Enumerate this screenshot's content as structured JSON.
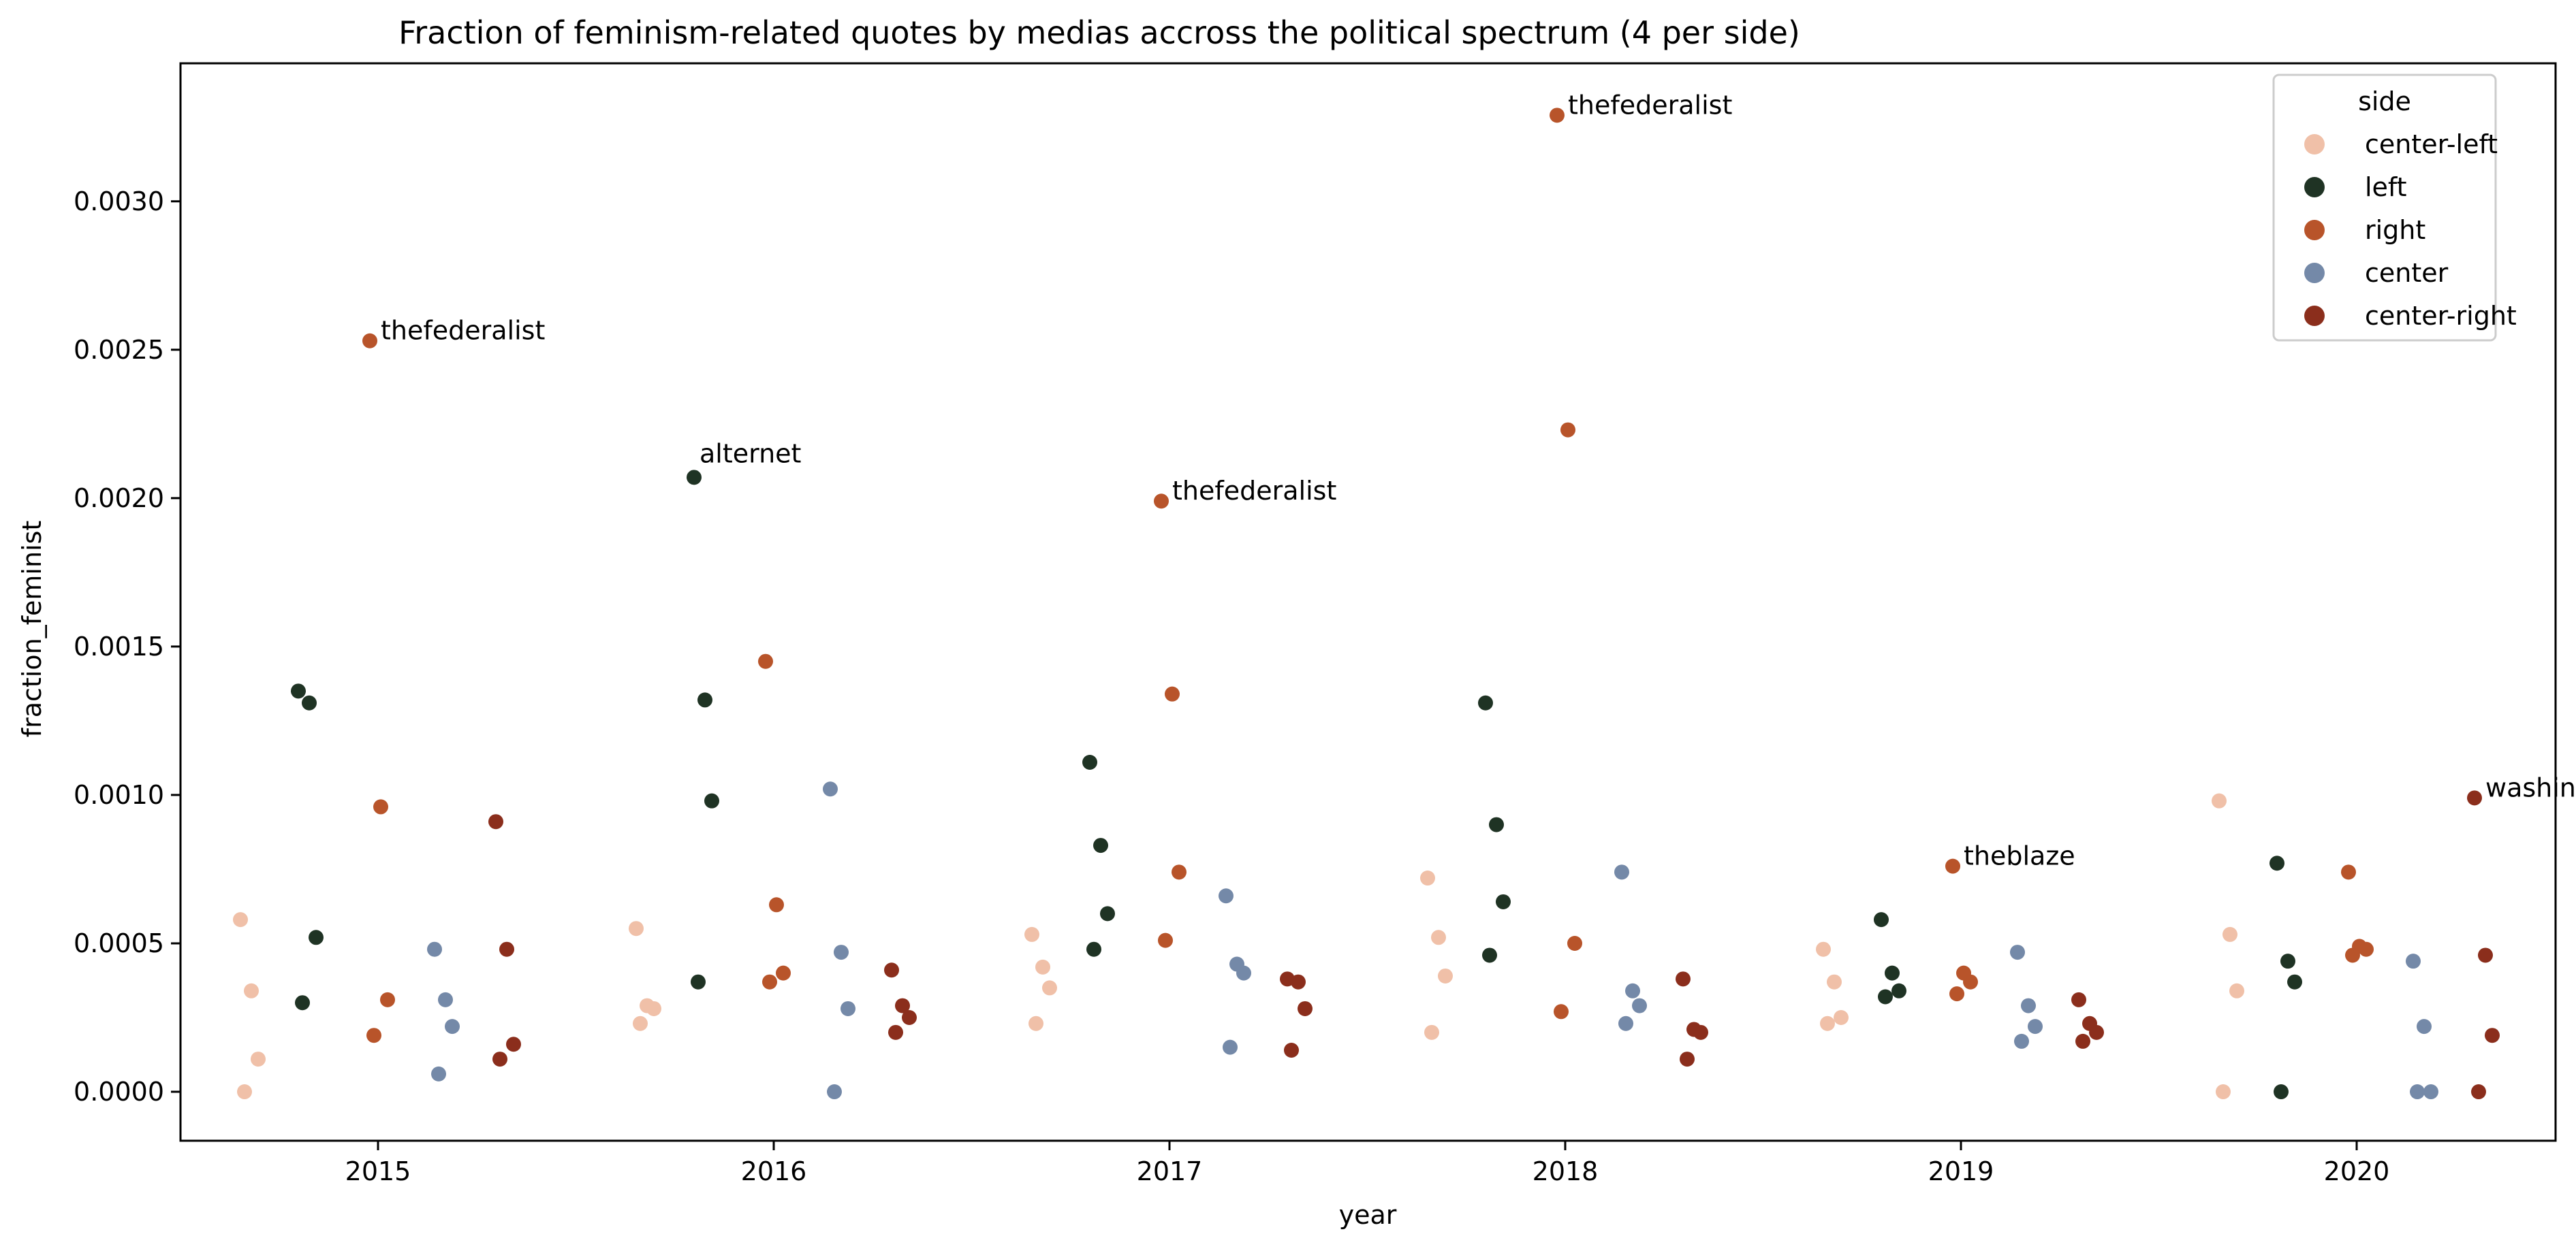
{
  "chart_data": {
    "type": "scatter",
    "title": "Fraction of feminism-related quotes by medias accross the political spectrum (4 per side)",
    "xlabel": "year",
    "ylabel": "fraction_feminist",
    "categories": [
      "2015",
      "2016",
      "2017",
      "2018",
      "2019",
      "2020"
    ],
    "ylim": [
      -0.000165,
      0.003465
    ],
    "yticks": [
      "0.0000",
      "0.0005",
      "0.0010",
      "0.0015",
      "0.0020",
      "0.0025",
      "0.0030"
    ],
    "ytick_values": [
      0,
      0.0005,
      0.001,
      0.0015,
      0.002,
      0.0025,
      0.003
    ],
    "grid": false,
    "legend": {
      "title": "side",
      "placement": "top-right",
      "entries": [
        "center-left",
        "left",
        "right",
        "center",
        "center-right"
      ]
    },
    "series": [
      {
        "name": "center-left",
        "color": "#f0c0a8",
        "points": [
          {
            "x": "2015",
            "y": 0.00058
          },
          {
            "x": "2015",
            "y": 0.00034
          },
          {
            "x": "2015",
            "y": 0.00011
          },
          {
            "x": "2015",
            "y": 0.0
          },
          {
            "x": "2016",
            "y": 0.00055
          },
          {
            "x": "2016",
            "y": 0.00029
          },
          {
            "x": "2016",
            "y": 0.00028
          },
          {
            "x": "2016",
            "y": 0.00023
          },
          {
            "x": "2017",
            "y": 0.00053
          },
          {
            "x": "2017",
            "y": 0.00042
          },
          {
            "x": "2017",
            "y": 0.00035
          },
          {
            "x": "2017",
            "y": 0.00023
          },
          {
            "x": "2018",
            "y": 0.00072
          },
          {
            "x": "2018",
            "y": 0.00052
          },
          {
            "x": "2018",
            "y": 0.00039
          },
          {
            "x": "2018",
            "y": 0.0002
          },
          {
            "x": "2019",
            "y": 0.00048
          },
          {
            "x": "2019",
            "y": 0.00037
          },
          {
            "x": "2019",
            "y": 0.00025
          },
          {
            "x": "2019",
            "y": 0.00023
          },
          {
            "x": "2020",
            "y": 0.00098
          },
          {
            "x": "2020",
            "y": 0.00053
          },
          {
            "x": "2020",
            "y": 0.00034
          },
          {
            "x": "2020",
            "y": 0.0
          }
        ]
      },
      {
        "name": "left",
        "color": "#1f3324",
        "points": [
          {
            "x": "2015",
            "y": 0.00135
          },
          {
            "x": "2015",
            "y": 0.00131
          },
          {
            "x": "2015",
            "y": 0.00052
          },
          {
            "x": "2015",
            "y": 0.0003
          },
          {
            "x": "2016",
            "y": 0.00207
          },
          {
            "x": "2016",
            "y": 0.00132
          },
          {
            "x": "2016",
            "y": 0.00098
          },
          {
            "x": "2016",
            "y": 0.00037
          },
          {
            "x": "2017",
            "y": 0.00111
          },
          {
            "x": "2017",
            "y": 0.00083
          },
          {
            "x": "2017",
            "y": 0.0006
          },
          {
            "x": "2017",
            "y": 0.00048
          },
          {
            "x": "2018",
            "y": 0.00131
          },
          {
            "x": "2018",
            "y": 0.0009
          },
          {
            "x": "2018",
            "y": 0.00064
          },
          {
            "x": "2018",
            "y": 0.00046
          },
          {
            "x": "2019",
            "y": 0.00058
          },
          {
            "x": "2019",
            "y": 0.0004
          },
          {
            "x": "2019",
            "y": 0.00034
          },
          {
            "x": "2019",
            "y": 0.00032
          },
          {
            "x": "2020",
            "y": 0.00077
          },
          {
            "x": "2020",
            "y": 0.00044
          },
          {
            "x": "2020",
            "y": 0.00037
          },
          {
            "x": "2020",
            "y": 0.0
          }
        ]
      },
      {
        "name": "right",
        "color": "#b8542a",
        "points": [
          {
            "x": "2015",
            "y": 0.00253,
            "label": "thefederalist"
          },
          {
            "x": "2015",
            "y": 0.00096
          },
          {
            "x": "2015",
            "y": 0.00031
          },
          {
            "x": "2015",
            "y": 0.00019
          },
          {
            "x": "2016",
            "y": 0.00145
          },
          {
            "x": "2016",
            "y": 0.00063
          },
          {
            "x": "2016",
            "y": 0.0004
          },
          {
            "x": "2016",
            "y": 0.00037
          },
          {
            "x": "2017",
            "y": 0.00199,
            "label": "thefederalist"
          },
          {
            "x": "2017",
            "y": 0.00134
          },
          {
            "x": "2017",
            "y": 0.00074
          },
          {
            "x": "2017",
            "y": 0.00051
          },
          {
            "x": "2018",
            "y": 0.00329,
            "label": "thefederalist"
          },
          {
            "x": "2018",
            "y": 0.00223
          },
          {
            "x": "2018",
            "y": 0.0005
          },
          {
            "x": "2018",
            "y": 0.00027
          },
          {
            "x": "2019",
            "y": 0.00076,
            "label": "theblaze"
          },
          {
            "x": "2019",
            "y": 0.0004
          },
          {
            "x": "2019",
            "y": 0.00037
          },
          {
            "x": "2019",
            "y": 0.00033
          },
          {
            "x": "2020",
            "y": 0.00074
          },
          {
            "x": "2020",
            "y": 0.00049
          },
          {
            "x": "2020",
            "y": 0.00048
          },
          {
            "x": "2020",
            "y": 0.00046
          }
        ]
      },
      {
        "name": "center",
        "color": "#7489a8",
        "points": [
          {
            "x": "2015",
            "y": 0.00048
          },
          {
            "x": "2015",
            "y": 0.00031
          },
          {
            "x": "2015",
            "y": 0.00022
          },
          {
            "x": "2015",
            "y": 6e-05
          },
          {
            "x": "2016",
            "y": 0.00102
          },
          {
            "x": "2016",
            "y": 0.00047
          },
          {
            "x": "2016",
            "y": 0.00028
          },
          {
            "x": "2016",
            "y": 0.0
          },
          {
            "x": "2017",
            "y": 0.00066
          },
          {
            "x": "2017",
            "y": 0.00043
          },
          {
            "x": "2017",
            "y": 0.0004
          },
          {
            "x": "2017",
            "y": 0.00015
          },
          {
            "x": "2018",
            "y": 0.00074
          },
          {
            "x": "2018",
            "y": 0.00034
          },
          {
            "x": "2018",
            "y": 0.00029
          },
          {
            "x": "2018",
            "y": 0.00023
          },
          {
            "x": "2019",
            "y": 0.00047
          },
          {
            "x": "2019",
            "y": 0.00029
          },
          {
            "x": "2019",
            "y": 0.00022
          },
          {
            "x": "2019",
            "y": 0.00017
          },
          {
            "x": "2020",
            "y": 0.00044
          },
          {
            "x": "2020",
            "y": 0.00022
          },
          {
            "x": "2020",
            "y": 0.0
          },
          {
            "x": "2020",
            "y": 0.0
          }
        ]
      },
      {
        "name": "center-right",
        "color": "#8b2e1c",
        "points": [
          {
            "x": "2015",
            "y": 0.00091
          },
          {
            "x": "2015",
            "y": 0.00048
          },
          {
            "x": "2015",
            "y": 0.00016
          },
          {
            "x": "2015",
            "y": 0.00011
          },
          {
            "x": "2016",
            "y": 0.00041
          },
          {
            "x": "2016",
            "y": 0.00029
          },
          {
            "x": "2016",
            "y": 0.00025
          },
          {
            "x": "2016",
            "y": 0.0002
          },
          {
            "x": "2017",
            "y": 0.00038
          },
          {
            "x": "2017",
            "y": 0.00037
          },
          {
            "x": "2017",
            "y": 0.00028
          },
          {
            "x": "2017",
            "y": 0.00014
          },
          {
            "x": "2018",
            "y": 0.00038
          },
          {
            "x": "2018",
            "y": 0.00021
          },
          {
            "x": "2018",
            "y": 0.0002
          },
          {
            "x": "2018",
            "y": 0.00011
          },
          {
            "x": "2019",
            "y": 0.00031
          },
          {
            "x": "2019",
            "y": 0.00023
          },
          {
            "x": "2019",
            "y": 0.0002
          },
          {
            "x": "2019",
            "y": 0.00017
          },
          {
            "x": "2020",
            "y": 0.00099,
            "label": "washingtonexaminer"
          },
          {
            "x": "2020",
            "y": 0.00046
          },
          {
            "x": "2020",
            "y": 0.00019
          },
          {
            "x": "2020",
            "y": 0.0
          }
        ]
      }
    ],
    "annotations": [
      {
        "text": "alternet",
        "x": "2016",
        "y": 0.00207
      }
    ]
  }
}
